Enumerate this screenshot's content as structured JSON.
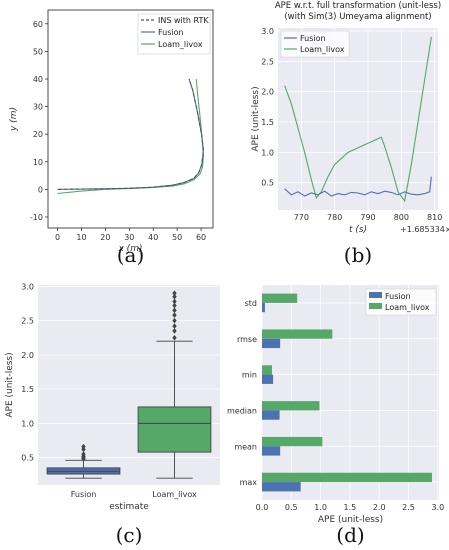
{
  "colors": {
    "fusion": "#4c72b0",
    "loam": "#55a868",
    "ins": "#555555",
    "grid": "#e6e6e6",
    "panel_bg": "#eaeaf2"
  },
  "chart_data": [
    {
      "id": "a",
      "type": "line",
      "panel_label": "(a)",
      "xlabel": "x (m)",
      "ylabel": "y (m)",
      "xlim": [
        -4,
        65
      ],
      "ylim": [
        -14,
        65
      ],
      "xticks": [
        0,
        10,
        20,
        30,
        40,
        50,
        60
      ],
      "yticks": [
        -10,
        0,
        10,
        20,
        30,
        40,
        50,
        60
      ],
      "grid": false,
      "legend_position": "top-right",
      "series": [
        {
          "name": "INS with RTK",
          "style": "dashed",
          "x": [
            0,
            10,
            20,
            30,
            40,
            48,
            53,
            57,
            59,
            60.3,
            61,
            60.2,
            58.5,
            56.5,
            55
          ],
          "y": [
            0,
            0.1,
            0.2,
            0.4,
            0.8,
            1.5,
            2.5,
            4,
            6,
            9,
            14,
            20,
            28,
            36,
            40
          ]
        },
        {
          "name": "Fusion",
          "style": "solid",
          "x": [
            0,
            10,
            20,
            30,
            40,
            48,
            53,
            57,
            59,
            60.3,
            61,
            60.2,
            58.5,
            56.5,
            55
          ],
          "y": [
            0,
            0.1,
            0.2,
            0.4,
            0.8,
            1.5,
            2.5,
            4,
            6,
            9,
            14,
            20,
            28,
            36,
            40
          ]
        },
        {
          "name": "Loam_livox",
          "style": "solid",
          "x": [
            0,
            10,
            20,
            30,
            40,
            48,
            53,
            57,
            59.5,
            60.6,
            61,
            60.5,
            59.5,
            58.5,
            58
          ],
          "y": [
            -1.5,
            -0.6,
            0,
            0.3,
            0.7,
            1.2,
            2,
            3.5,
            5.5,
            8,
            12,
            18,
            27,
            35,
            40
          ]
        }
      ]
    },
    {
      "id": "b",
      "type": "line",
      "panel_label": "(b)",
      "title": [
        "APE w.r.t. full transformation (unit-less)",
        "(with Sim(3) Umeyama alignment)"
      ],
      "xlabel": "t (s)",
      "ylabel": "APE (unit-less)",
      "x_offset_label": "+1.685334×10⁹",
      "xlim": [
        763,
        811
      ],
      "ylim": [
        0.05,
        3.05
      ],
      "xticks": [
        770,
        780,
        790,
        800,
        810
      ],
      "yticks": [
        0.5,
        1.0,
        1.5,
        2.0,
        2.5,
        3.0
      ],
      "yticklabels": [
        "0.5",
        "1.0",
        "1.5",
        "2.0",
        "2.5",
        "3.0"
      ],
      "grid": true,
      "legend_position": "top-left",
      "series": [
        {
          "name": "Fusion",
          "x": [
            765,
            767,
            769,
            771,
            773,
            775,
            777,
            779,
            781,
            783,
            785,
            787,
            789,
            791,
            793,
            795,
            797,
            799,
            801,
            803,
            805,
            807,
            808.5,
            809
          ],
          "y": [
            0.4,
            0.3,
            0.35,
            0.28,
            0.33,
            0.3,
            0.36,
            0.28,
            0.32,
            0.3,
            0.34,
            0.33,
            0.3,
            0.35,
            0.32,
            0.36,
            0.34,
            0.3,
            0.35,
            0.31,
            0.3,
            0.32,
            0.35,
            0.6
          ]
        },
        {
          "name": "Loam_livox",
          "x": [
            765,
            767,
            769,
            771,
            773,
            774.5,
            776,
            778,
            780,
            782,
            784,
            786,
            788,
            790,
            792,
            794,
            795,
            797,
            799,
            801,
            803,
            805,
            807,
            809
          ],
          "y": [
            2.1,
            1.8,
            1.4,
            1.0,
            0.55,
            0.25,
            0.35,
            0.6,
            0.8,
            0.9,
            1.0,
            1.05,
            1.1,
            1.15,
            1.2,
            1.25,
            1.1,
            0.75,
            0.35,
            0.2,
            0.8,
            1.5,
            2.2,
            2.9
          ]
        }
      ]
    },
    {
      "id": "c",
      "type": "box",
      "panel_label": "(c)",
      "xlabel": "estimate",
      "ylabel": "APE (unit-less)",
      "ylim": [
        0.1,
        3.02
      ],
      "yticks": [
        0.5,
        1.0,
        1.5,
        2.0,
        2.5,
        3.0
      ],
      "yticklabels": [
        "0.5",
        "1.0",
        "1.5",
        "2.0",
        "2.5",
        "3.0"
      ],
      "grid": true,
      "categories": [
        "Fusion",
        "Loam_livox"
      ],
      "boxes": [
        {
          "name": "Fusion",
          "whisker_low": 0.2,
          "q1": 0.26,
          "median": 0.3,
          "q3": 0.35,
          "whisker_high": 0.46,
          "outliers": [
            0.48,
            0.5,
            0.52,
            0.55,
            0.62,
            0.66
          ]
        },
        {
          "name": "Loam_livox",
          "whisker_low": 0.2,
          "q1": 0.58,
          "median": 1.0,
          "q3": 1.24,
          "whisker_high": 2.2,
          "outliers": [
            2.25,
            2.35,
            2.42,
            2.5,
            2.58,
            2.65,
            2.72,
            2.78,
            2.85,
            2.9
          ]
        }
      ]
    },
    {
      "id": "d",
      "type": "bar",
      "orientation": "horizontal",
      "panel_label": "(d)",
      "xlabel": "APE (unit-less)",
      "xlim": [
        0,
        3.02
      ],
      "xticks": [
        0.0,
        0.5,
        1.0,
        1.5,
        2.0,
        2.5,
        3.0
      ],
      "xticklabels": [
        "0.0",
        "0.5",
        "1.0",
        "1.5",
        "2.0",
        "2.5",
        "3.0"
      ],
      "grid": true,
      "legend_position": "top-right",
      "categories": [
        "std",
        "rmse",
        "min",
        "median",
        "mean",
        "max"
      ],
      "series": [
        {
          "name": "Fusion",
          "values": [
            0.05,
            0.31,
            0.19,
            0.3,
            0.31,
            0.66
          ]
        },
        {
          "name": "Loam_livox",
          "values": [
            0.6,
            1.2,
            0.17,
            0.98,
            1.03,
            2.9
          ]
        }
      ]
    }
  ]
}
